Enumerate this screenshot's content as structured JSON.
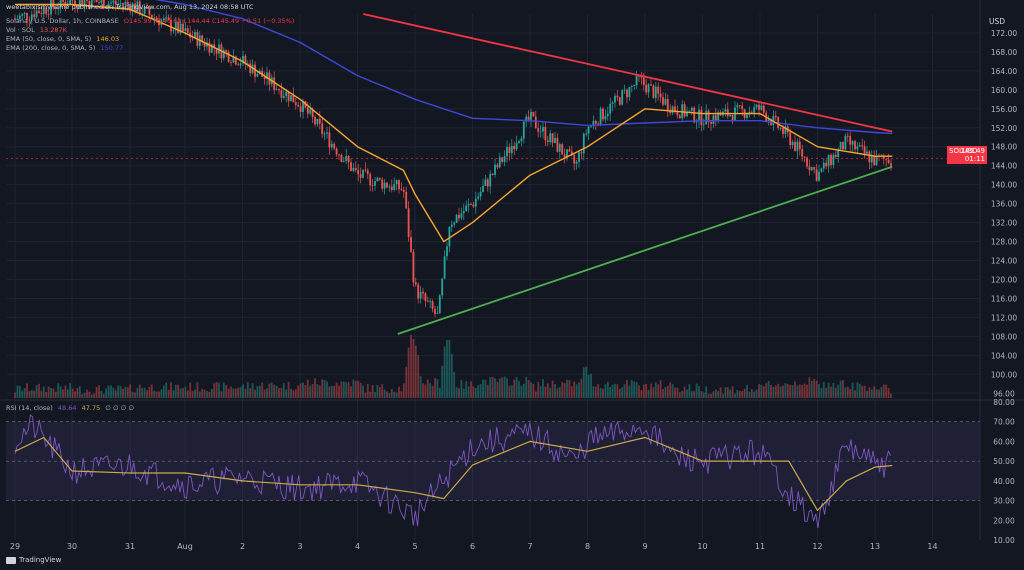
{
  "header": {
    "published": "weetabixismyname published on TradingView.com, Aug 13, 2024 08:58 UTC",
    "title": "Solana / U.S. Dollar, 1h, COINBASE",
    "ohlc": "O145.99 H146.61 L144.44 C145.49 −0.51 (−0.35%)",
    "vol_label": "Vol · SOL",
    "vol_value": "13.287K",
    "ema50_label": "EMA (50, close, 0, SMA, 5)",
    "ema50_value": "146.03",
    "ema200_label": "EMA (200, close, 0, SMA, 5)",
    "ema200_value": "150.77",
    "rsi_label": "RSI (14, close)",
    "rsi_value": "48.64",
    "rsi_ma_value": "47.75",
    "rsi_extra": "∅ ∅ ∅ ∅"
  },
  "currency": "USD",
  "last_price_tag": {
    "symbol": "SOLUSD",
    "price": "145.49",
    "countdown": "01:11"
  },
  "branding": {
    "name": "TradingView"
  },
  "colors": {
    "background": "#131722",
    "grid": "#1f2330",
    "up": "#26a69a",
    "down": "#ef5350",
    "ema50": "#f7a530",
    "ema200": "#3f48d6",
    "resistance": "#f23645",
    "support": "#4caf50",
    "rsi": "#7e57c2",
    "rsi_ma": "#c9a94a",
    "axis_text": "#b2b5be"
  },
  "chart_data": [
    {
      "type": "candlestick",
      "title": "Solana / U.S. Dollar, 1h, COINBASE",
      "x_ticks": [
        "29",
        "30",
        "31",
        "Aug",
        "2",
        "3",
        "4",
        "5",
        "6",
        "7",
        "8",
        "9",
        "10",
        "11",
        "12",
        "13",
        "14"
      ],
      "y_ticks": [
        96,
        100,
        104,
        108,
        112,
        116,
        120,
        124,
        128,
        132,
        136,
        140,
        144,
        148,
        152,
        156,
        160,
        164,
        168,
        172
      ],
      "ylim": [
        95,
        176
      ],
      "close_path_approx": [
        {
          "x": "29",
          "y": 175
        },
        {
          "x": "30",
          "y": 179
        },
        {
          "x": "31",
          "y": 178
        },
        {
          "x": "Aug",
          "y": 172
        },
        {
          "x": "2",
          "y": 166
        },
        {
          "x": "3",
          "y": 157
        },
        {
          "x": "4",
          "y": 142
        },
        {
          "x": "4.8",
          "y": 139
        },
        {
          "x": "5",
          "y": 118
        },
        {
          "x": "5.4",
          "y": 112
        },
        {
          "x": "5.6",
          "y": 132
        },
        {
          "x": "6",
          "y": 136
        },
        {
          "x": "7",
          "y": 154
        },
        {
          "x": "7.8",
          "y": 144
        },
        {
          "x": "8",
          "y": 152
        },
        {
          "x": "8.9",
          "y": 162
        },
        {
          "x": "9.5",
          "y": 156
        },
        {
          "x": "10",
          "y": 154
        },
        {
          "x": "11",
          "y": 156
        },
        {
          "x": "11.5",
          "y": 150
        },
        {
          "x": "12",
          "y": 142
        },
        {
          "x": "12.5",
          "y": 149
        },
        {
          "x": "13",
          "y": 145
        },
        {
          "x": "13.3",
          "y": 145.5
        }
      ],
      "ema50_path_approx": [
        {
          "x": "29",
          "y": 178
        },
        {
          "x": "30",
          "y": 178
        },
        {
          "x": "31",
          "y": 177
        },
        {
          "x": "Aug",
          "y": 172
        },
        {
          "x": "2",
          "y": 166
        },
        {
          "x": "3",
          "y": 158
        },
        {
          "x": "4",
          "y": 148
        },
        {
          "x": "4.8",
          "y": 143
        },
        {
          "x": "5",
          "y": 138
        },
        {
          "x": "5.5",
          "y": 128
        },
        {
          "x": "6",
          "y": 132
        },
        {
          "x": "7",
          "y": 142
        },
        {
          "x": "8",
          "y": 148
        },
        {
          "x": "9",
          "y": 156
        },
        {
          "x": "10",
          "y": 155
        },
        {
          "x": "11",
          "y": 155
        },
        {
          "x": "12",
          "y": 148
        },
        {
          "x": "13",
          "y": 146
        },
        {
          "x": "13.3",
          "y": 146
        }
      ],
      "ema200_path_approx": [
        {
          "x": "31",
          "y": 180
        },
        {
          "x": "Aug",
          "y": 178
        },
        {
          "x": "2",
          "y": 175
        },
        {
          "x": "3",
          "y": 170
        },
        {
          "x": "4",
          "y": 163
        },
        {
          "x": "5",
          "y": 158
        },
        {
          "x": "6",
          "y": 154
        },
        {
          "x": "7",
          "y": 153.5
        },
        {
          "x": "8",
          "y": 152.5
        },
        {
          "x": "9",
          "y": 153
        },
        {
          "x": "10",
          "y": 153.5
        },
        {
          "x": "11",
          "y": 153.5
        },
        {
          "x": "12",
          "y": 152
        },
        {
          "x": "13",
          "y": 151
        },
        {
          "x": "13.3",
          "y": 150.8
        }
      ],
      "trendlines": [
        {
          "name": "resistance",
          "from": {
            "x": "4.1",
            "y": 176
          },
          "to": {
            "x": "13.3",
            "y": 151.2
          }
        },
        {
          "name": "support",
          "from": {
            "x": "4.7",
            "y": 108.5
          },
          "to": {
            "x": "13.3",
            "y": 143.8
          }
        }
      ],
      "legend": "top-left",
      "grid": true
    },
    {
      "type": "line",
      "title": "RSI (14, close)",
      "y_ticks": [
        10,
        20,
        30,
        40,
        50,
        60,
        70,
        80
      ],
      "ylim": [
        10,
        80
      ],
      "band": [
        30,
        70
      ],
      "rsi_path_approx": [
        {
          "x": "29",
          "y": 60
        },
        {
          "x": "29.3",
          "y": 68
        },
        {
          "x": "30",
          "y": 45
        },
        {
          "x": "31",
          "y": 48
        },
        {
          "x": "Aug",
          "y": 38
        },
        {
          "x": "2",
          "y": 42
        },
        {
          "x": "3",
          "y": 36
        },
        {
          "x": "4",
          "y": 40
        },
        {
          "x": "5",
          "y": 22
        },
        {
          "x": "5.5",
          "y": 40
        },
        {
          "x": "6",
          "y": 58
        },
        {
          "x": "7",
          "y": 64
        },
        {
          "x": "7.8",
          "y": 50
        },
        {
          "x": "8",
          "y": 60
        },
        {
          "x": "9",
          "y": 68
        },
        {
          "x": "9.5",
          "y": 52
        },
        {
          "x": "10",
          "y": 50
        },
        {
          "x": "11",
          "y": 55
        },
        {
          "x": "11.6",
          "y": 30
        },
        {
          "x": "12",
          "y": 18
        },
        {
          "x": "12.5",
          "y": 58
        },
        {
          "x": "13",
          "y": 48
        },
        {
          "x": "13.3",
          "y": 48.6
        }
      ],
      "rsi_ma_path_approx": [
        {
          "x": "29",
          "y": 55
        },
        {
          "x": "29.5",
          "y": 62
        },
        {
          "x": "30",
          "y": 45
        },
        {
          "x": "31",
          "y": 44
        },
        {
          "x": "Aug",
          "y": 44
        },
        {
          "x": "2",
          "y": 40
        },
        {
          "x": "3",
          "y": 38
        },
        {
          "x": "4",
          "y": 38
        },
        {
          "x": "5",
          "y": 34
        },
        {
          "x": "5.5",
          "y": 31
        },
        {
          "x": "6",
          "y": 48
        },
        {
          "x": "7",
          "y": 60
        },
        {
          "x": "8",
          "y": 55
        },
        {
          "x": "9",
          "y": 62
        },
        {
          "x": "10",
          "y": 50
        },
        {
          "x": "11",
          "y": 50
        },
        {
          "x": "11.5",
          "y": 50
        },
        {
          "x": "12",
          "y": 25
        },
        {
          "x": "12.5",
          "y": 40
        },
        {
          "x": "13",
          "y": 47
        },
        {
          "x": "13.3",
          "y": 47.8
        }
      ]
    }
  ]
}
